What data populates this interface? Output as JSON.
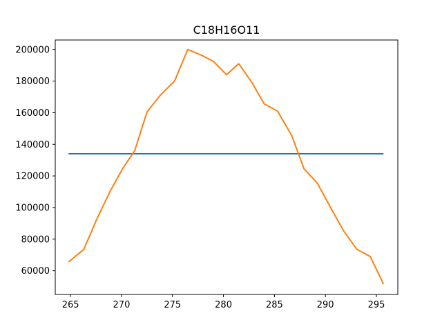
{
  "chart_data": {
    "type": "line",
    "title": "C18H16O11",
    "xlabel": "",
    "ylabel": "",
    "xlim": [
      263.5,
      297.1
    ],
    "ylim": [
      45000,
      206000
    ],
    "xticks": [
      265,
      270,
      275,
      280,
      285,
      290,
      295
    ],
    "yticks": [
      60000,
      80000,
      100000,
      120000,
      140000,
      160000,
      180000,
      200000
    ],
    "grid": false,
    "series": [
      {
        "color": "#1f77b4",
        "x": [
          264.8,
          295.7
        ],
        "y": [
          134000,
          134000
        ]
      },
      {
        "color": "#ff7f0e",
        "x": [
          264.8,
          266.3,
          267.6,
          268.9,
          270.1,
          271.3,
          272.5,
          273.8,
          275.2,
          276.5,
          277.8,
          279.0,
          280.3,
          281.5,
          282.8,
          284.0,
          285.3,
          286.7,
          287.9,
          289.2,
          290.5,
          291.8,
          293.1,
          294.4,
          295.7
        ],
        "y": [
          65500,
          73500,
          93000,
          110500,
          124500,
          136000,
          160500,
          171000,
          180000,
          200000,
          196500,
          192500,
          184000,
          191000,
          179000,
          165500,
          161000,
          145500,
          124500,
          115500,
          100000,
          85000,
          73500,
          69000,
          51500
        ]
      }
    ]
  }
}
